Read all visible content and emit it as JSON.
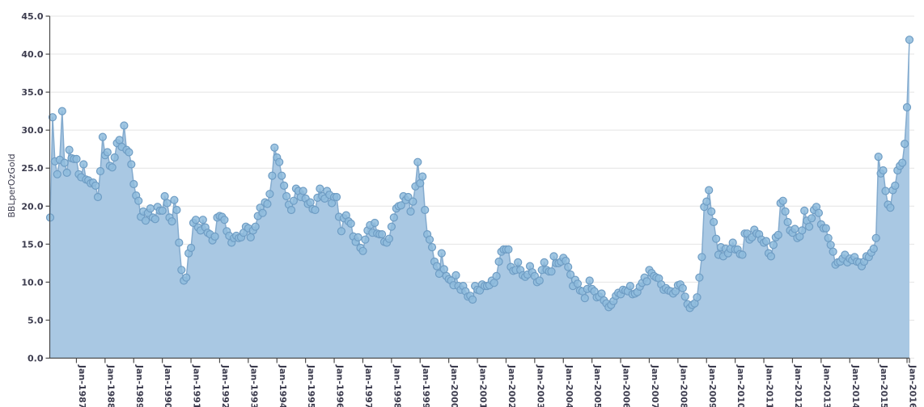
{
  "chart_data": {
    "type": "area",
    "title": "",
    "xlabel": "",
    "ylabel": "BBLperOzGold",
    "ylim": [
      0,
      45
    ],
    "y_tick_step": 5,
    "y_ticks": [
      "0.0",
      "5.0",
      "10.0",
      "15.0",
      "20.0",
      "25.0",
      "30.0",
      "35.0",
      "40.0",
      "45.0"
    ],
    "x_ticks": [
      "Jan-1987",
      "Jan-1988",
      "Jan-1989",
      "Jan-1990",
      "Jan-1991",
      "Jan-1992",
      "Jan-1993",
      "Jan-1994",
      "Jan-1995",
      "Jan-1996",
      "Jan-1997",
      "Jan-1998",
      "Jan-1999",
      "Jan-2000",
      "Jan-2001",
      "Jan-2002",
      "Jan-2003",
      "Jan-2004",
      "Jan-2005",
      "Jan-2006",
      "Jan-2007",
      "Jan-2008",
      "Jan-2009",
      "Jan-2010",
      "Jan-2011",
      "Jan-2012",
      "Jan-2013",
      "Jan-2014",
      "Jan-2015",
      "Jan-2016"
    ],
    "x_start_month": "1986-02",
    "x_end_month": "2016-02",
    "first_tick_point_index": 11,
    "points_per_tick": 12,
    "grid": "horizontal",
    "legend_position": "none",
    "series": [
      {
        "name": "BBLperOzGold",
        "values": [
          18.5,
          31.7,
          25.9,
          24.2,
          26.1,
          32.5,
          25.7,
          24.4,
          27.4,
          26.3,
          26.2,
          26.2,
          24.2,
          23.8,
          25.5,
          23.5,
          23.4,
          23.0,
          23.1,
          22.7,
          21.2,
          24.6,
          29.1,
          26.7,
          27.1,
          25.3,
          25.1,
          26.4,
          28.3,
          28.7,
          27.8,
          30.6,
          27.4,
          27.1,
          25.5,
          22.9,
          21.4,
          20.7,
          18.6,
          19.3,
          18.1,
          19.1,
          19.7,
          18.5,
          18.3,
          19.9,
          19.4,
          19.4,
          21.3,
          20.4,
          18.5,
          18.0,
          20.8,
          19.5,
          15.2,
          11.6,
          10.2,
          10.6,
          13.8,
          14.5,
          17.8,
          18.2,
          17.2,
          16.8,
          18.2,
          17.2,
          16.5,
          16.3,
          15.5,
          16.0,
          18.5,
          18.7,
          18.6,
          18.2,
          16.7,
          16.1,
          15.2,
          15.8,
          16.1,
          15.8,
          15.9,
          16.5,
          17.3,
          17.1,
          15.9,
          16.8,
          17.3,
          18.7,
          19.8,
          19.1,
          20.5,
          20.3,
          21.6,
          24.0,
          27.7,
          26.4,
          25.8,
          24.0,
          22.7,
          21.3,
          20.2,
          19.5,
          20.7,
          22.3,
          22.0,
          21.2,
          22.0,
          21.0,
          20.3,
          20.5,
          19.6,
          19.5,
          21.1,
          22.3,
          21.3,
          21.0,
          22.0,
          21.5,
          20.4,
          21.2,
          21.2,
          18.6,
          16.7,
          18.4,
          18.8,
          18.0,
          17.7,
          16.0,
          15.3,
          15.9,
          14.5,
          14.1,
          15.6,
          16.8,
          17.5,
          16.5,
          17.8,
          16.4,
          16.3,
          16.3,
          15.3,
          15.2,
          15.7,
          17.3,
          18.5,
          19.7,
          20.0,
          20.1,
          21.3,
          20.8,
          21.2,
          19.3,
          20.6,
          22.6,
          25.8,
          23.0,
          23.9,
          19.5,
          16.3,
          15.6,
          14.6,
          12.7,
          12.1,
          11.1,
          13.8,
          11.7,
          10.8,
          10.4,
          10.2,
          9.6,
          10.9,
          9.5,
          9.0,
          9.5,
          8.8,
          8.1,
          8.2,
          7.7,
          9.5,
          9.0,
          8.9,
          9.7,
          9.5,
          9.5,
          9.6,
          10.2,
          9.9,
          10.8,
          12.7,
          14.0,
          14.3,
          14.3,
          14.3,
          12.0,
          11.5,
          11.6,
          12.6,
          11.6,
          10.9,
          10.7,
          11.0,
          12.1,
          11.3,
          10.8,
          10.0,
          10.2,
          11.6,
          12.6,
          11.6,
          11.4,
          11.4,
          13.4,
          12.5,
          12.5,
          12.7,
          13.2,
          12.8,
          12.0,
          11.0,
          9.5,
          10.3,
          9.8,
          8.9,
          8.8,
          7.9,
          9.1,
          10.2,
          9.1,
          8.8,
          8.0,
          8.1,
          8.5,
          7.6,
          7.2,
          6.7,
          7.0,
          7.5,
          8.2,
          8.6,
          8.4,
          9.0,
          8.9,
          8.8,
          9.5,
          8.4,
          8.5,
          8.7,
          9.4,
          9.9,
          10.6,
          10.1,
          11.6,
          11.2,
          10.8,
          10.6,
          10.5,
          9.7,
          9.0,
          9.2,
          8.9,
          8.8,
          8.5,
          8.8,
          9.6,
          9.7,
          9.2,
          8.1,
          7.1,
          6.6,
          7.0,
          7.2,
          8.0,
          10.6,
          13.3,
          19.9,
          20.6,
          22.1,
          19.3,
          17.9,
          15.7,
          13.6,
          14.6,
          13.4,
          14.4,
          13.8,
          14.4,
          15.2,
          14.3,
          14.3,
          13.7,
          13.6,
          16.4,
          16.4,
          15.6,
          15.9,
          16.9,
          16.4,
          16.3,
          15.6,
          15.2,
          15.4,
          13.8,
          13.4,
          14.9,
          15.9,
          16.2,
          20.4,
          20.7,
          19.3,
          17.9,
          16.8,
          16.5,
          17.0,
          15.8,
          16.0,
          16.8,
          19.4,
          18.1,
          17.3,
          18.4,
          19.5,
          19.9,
          19.1,
          17.6,
          17.1,
          17.1,
          15.8,
          14.9,
          14.0,
          12.3,
          12.6,
          12.7,
          13.1,
          13.6,
          12.6,
          13.1,
          12.9,
          13.3,
          12.7,
          12.6,
          12.1,
          12.7,
          13.4,
          13.3,
          13.9,
          14.4,
          15.8,
          26.5,
          24.3,
          24.7,
          22.0,
          20.2,
          19.8,
          22.1,
          22.7,
          24.7,
          25.3,
          25.7,
          28.2,
          33.0,
          41.9
        ]
      }
    ],
    "colors": {
      "area_fill": "#a9c8e3",
      "line": "#84abce",
      "marker_fill": "#8fbcdd",
      "marker_stroke": "#6f9dc4",
      "grid": "#e4e4e4",
      "axis": "#4a4a4a",
      "label": "#3c3c4e"
    }
  }
}
